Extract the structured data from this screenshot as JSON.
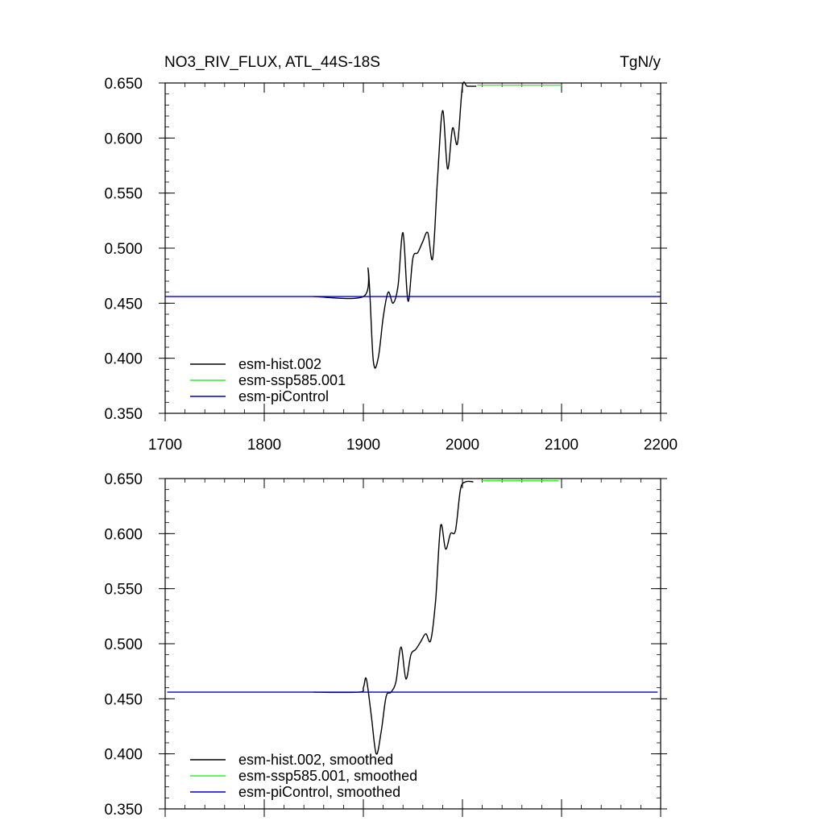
{
  "chart_data": [
    {
      "type": "line",
      "title": "NO3_RIV_FLUX, ATL_44S-18S",
      "units": "TgN/y",
      "xlim": [
        1700,
        2200
      ],
      "ylim": [
        0.35,
        0.65
      ],
      "xticks": [
        "1700",
        "1800",
        "1900",
        "2000",
        "2100",
        "2200"
      ],
      "yticks": [
        "0.350",
        "0.400",
        "0.450",
        "0.500",
        "0.550",
        "0.600",
        "0.650"
      ],
      "grid": false,
      "legend_position": "bottom-left",
      "series": [
        {
          "name": "esm-hist.002",
          "color": "#000000",
          "x": [
            1850,
            1900,
            1905,
            1910,
            1915,
            1920,
            1925,
            1930,
            1935,
            1940,
            1945,
            1950,
            1955,
            1960,
            1965,
            1970,
            1975,
            1980,
            1985,
            1990,
            1995,
            2000,
            2005,
            2014
          ],
          "y": [
            0.456,
            0.456,
            0.48,
            0.398,
            0.4,
            0.437,
            0.46,
            0.45,
            0.466,
            0.514,
            0.452,
            0.491,
            0.496,
            0.506,
            0.514,
            0.491,
            0.566,
            0.625,
            0.572,
            0.609,
            0.595,
            0.647,
            0.647,
            0.647
          ]
        },
        {
          "name": "esm-ssp585.001",
          "color": "#33ee33",
          "x": [
            2015,
            2100
          ],
          "y": [
            0.648,
            0.648
          ]
        },
        {
          "name": "esm-piControl",
          "color": "#0000cc",
          "x": [
            1700,
            2200
          ],
          "y": [
            0.456,
            0.456
          ]
        }
      ]
    },
    {
      "type": "line",
      "xlim": [
        1700,
        2200
      ],
      "ylim": [
        0.35,
        0.65
      ],
      "yticks": [
        "0.350",
        "0.400",
        "0.450",
        "0.500",
        "0.550",
        "0.600",
        "0.650"
      ],
      "grid": false,
      "legend_position": "bottom-left",
      "series": [
        {
          "name": "esm-hist.002, smoothed",
          "color": "#000000",
          "x": [
            1850,
            1895,
            1900,
            1903,
            1908,
            1913,
            1918,
            1923,
            1928,
            1933,
            1938,
            1943,
            1948,
            1953,
            1958,
            1963,
            1968,
            1973,
            1978,
            1983,
            1988,
            1993,
            1998,
            2003,
            2011
          ],
          "y": [
            0.456,
            0.456,
            0.46,
            0.468,
            0.435,
            0.4,
            0.42,
            0.452,
            0.456,
            0.466,
            0.497,
            0.468,
            0.49,
            0.495,
            0.502,
            0.509,
            0.503,
            0.54,
            0.607,
            0.586,
            0.6,
            0.603,
            0.64,
            0.647,
            0.647
          ]
        },
        {
          "name": "esm-ssp585.001, smoothed",
          "color": "#33ee33",
          "x": [
            2019,
            2097
          ],
          "y": [
            0.648,
            0.648
          ]
        },
        {
          "name": "esm-piControl, smoothed",
          "color": "#0000cc",
          "x": [
            1702,
            2197
          ],
          "y": [
            0.456,
            0.456
          ]
        }
      ]
    }
  ]
}
